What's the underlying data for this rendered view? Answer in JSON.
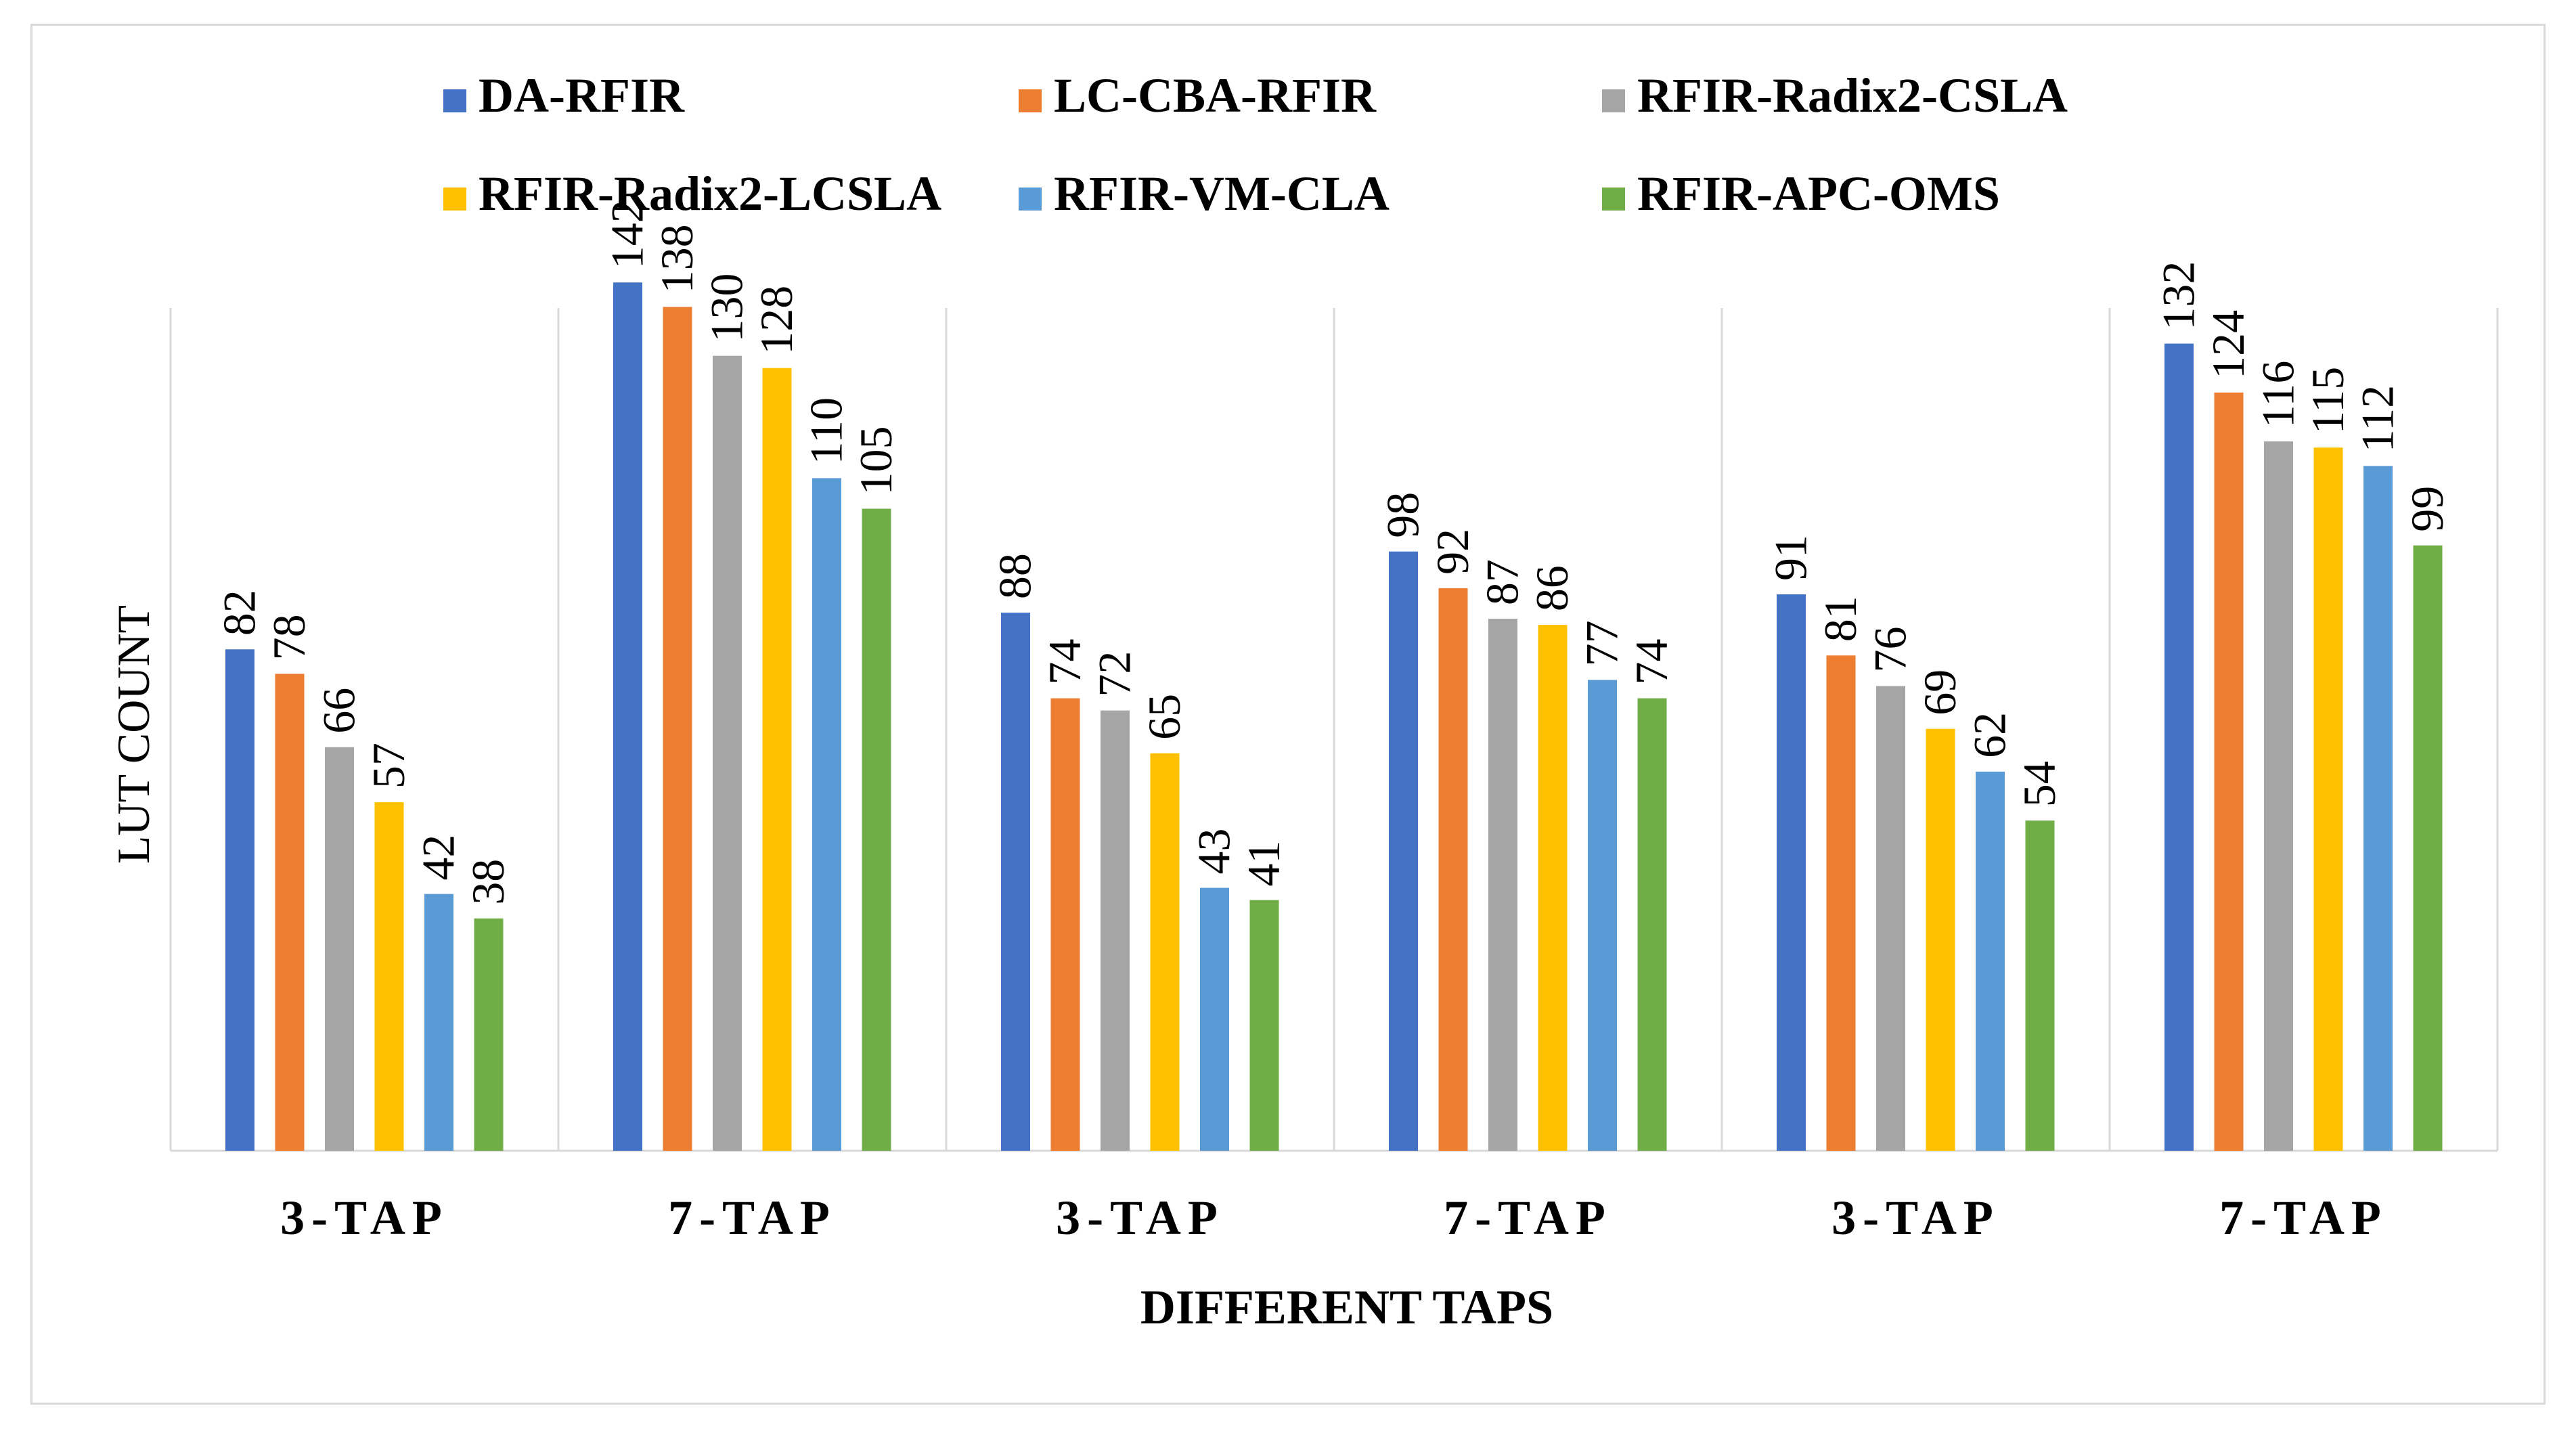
{
  "chart_data": {
    "type": "bar",
    "title": "",
    "xlabel": "DIFFERENT TAPS",
    "ylabel": "LUT COUNT",
    "ylim": [
      0,
      160
    ],
    "grid": false,
    "legend_position": "top",
    "categories": [
      "3-TAP",
      "7-TAP",
      "3-TAP",
      "7-TAP",
      "3-TAP",
      "7-TAP"
    ],
    "series": [
      {
        "name": "DA-RFIR",
        "color": "#4472c4",
        "values": [
          82,
          142,
          88,
          98,
          91,
          132
        ]
      },
      {
        "name": "LC-CBA-RFIR",
        "color": "#ed7d31",
        "values": [
          78,
          138,
          74,
          92,
          81,
          124
        ]
      },
      {
        "name": "RFIR-Radix2-CSLA",
        "color": "#a5a5a5",
        "values": [
          66,
          130,
          72,
          87,
          76,
          116
        ]
      },
      {
        "name": "RFIR-Radix2-LCSLA",
        "color": "#ffc000",
        "values": [
          57,
          128,
          65,
          86,
          69,
          115
        ]
      },
      {
        "name": "RFIR-VM-CLA",
        "color": "#5b9bd5",
        "values": [
          42,
          110,
          43,
          77,
          62,
          112
        ]
      },
      {
        "name": "RFIR-APC-OMS",
        "color": "#70ad47",
        "values": [
          38,
          105,
          41,
          74,
          54,
          99
        ]
      }
    ]
  }
}
